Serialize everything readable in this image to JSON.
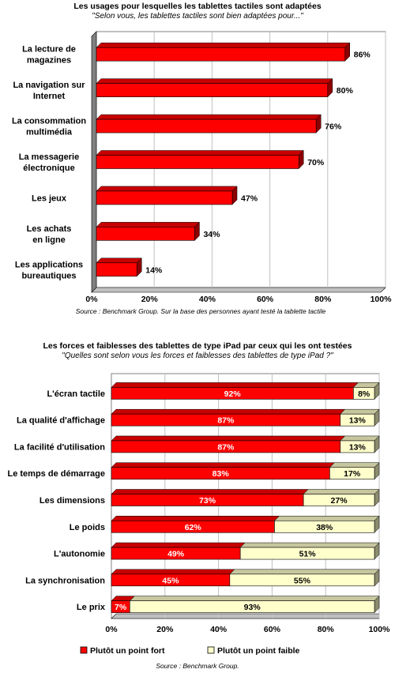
{
  "chart_data": [
    {
      "type": "bar",
      "orientation": "horizontal",
      "title": "Les usages pour lesquelles les tablettes tactiles sont adaptées",
      "subtitle": "\"Selon vous, les tablettes tactiles sont bien adaptées pour...\"",
      "categories": [
        [
          "La lecture de",
          "magazines"
        ],
        [
          "La navigation sur",
          "Internet"
        ],
        [
          "La consommation",
          "multimédia"
        ],
        [
          "La messagerie",
          "électronique"
        ],
        [
          "Les jeux"
        ],
        [
          "Les achats",
          "en ligne"
        ],
        [
          "Les applications",
          "bureautiques"
        ]
      ],
      "values": [
        86,
        80,
        76,
        70,
        47,
        34,
        14
      ],
      "value_labels": [
        "86%",
        "80%",
        "76%",
        "70%",
        "47%",
        "34%",
        "14%"
      ],
      "xlim": [
        0,
        100
      ],
      "x_ticks": [
        "0%",
        "20%",
        "40%",
        "60%",
        "80%",
        "100%"
      ],
      "grid": true,
      "bar_color": "#ff0000",
      "source": "Source : Benchmark Group. Sur la base des personnes ayant testé la tablette tactile"
    },
    {
      "type": "bar",
      "orientation": "horizontal",
      "stacked": true,
      "title": "Les forces et faiblesses des tablettes de type iPad par ceux qui les ont testées",
      "subtitle": "\"Quelles sont selon vous les forces et faiblesses des tablettes de type iPad ?\"",
      "categories": [
        "L'écran tactile",
        "La qualité d'affichage",
        "La facilité d'utilisation",
        "Le temps de démarrage",
        "Les dimensions",
        "Le poids",
        "L'autonomie",
        "La synchronisation",
        "Le prix"
      ],
      "series": [
        {
          "name": "Plutôt un point fort",
          "values": [
            92,
            87,
            87,
            83,
            73,
            62,
            49,
            45,
            7
          ],
          "labels": [
            "92%",
            "87%",
            "87%",
            "83%",
            "73%",
            "62%",
            "49%",
            "45%",
            "7%"
          ],
          "color": "#ff0000"
        },
        {
          "name": "Plutôt un point faible",
          "values": [
            8,
            13,
            13,
            17,
            27,
            38,
            51,
            55,
            93
          ],
          "labels": [
            "8%",
            "13%",
            "13%",
            "17%",
            "27%",
            "38%",
            "51%",
            "55%",
            "93%"
          ],
          "color": "#ffffcc"
        }
      ],
      "xlim": [
        0,
        100
      ],
      "x_ticks": [
        "0%",
        "20%",
        "40%",
        "60%",
        "80%",
        "100%"
      ],
      "grid": true,
      "legend_position": "bottom",
      "source": "Source : Benchmark Group."
    }
  ]
}
